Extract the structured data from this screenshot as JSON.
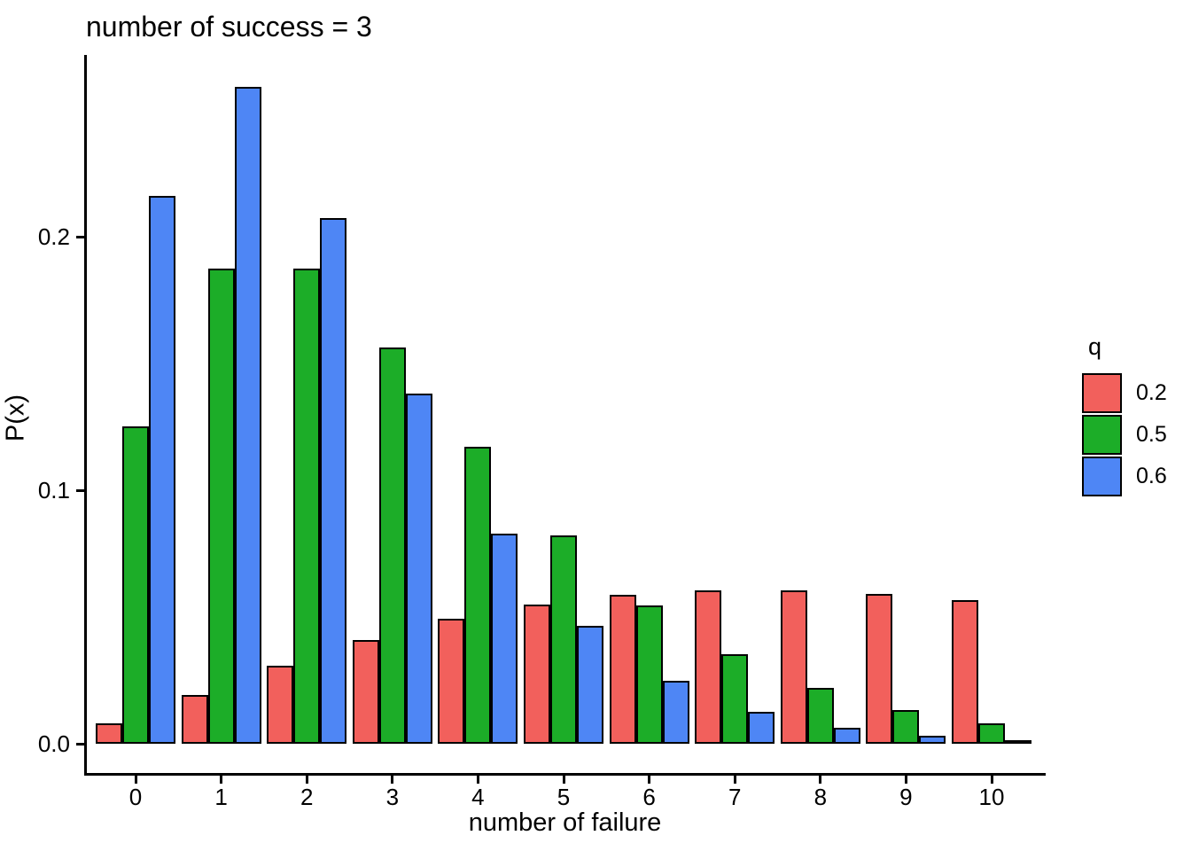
{
  "chart_data": {
    "type": "bar",
    "title": "number of success = 3",
    "xlabel": "number of failure",
    "ylabel": "P(x)",
    "legend_title": "q",
    "legend_position": "right",
    "grid": false,
    "background": "#ffffff",
    "axis_color": "#000000",
    "bar_border_color": "#000000",
    "categories": [
      "0",
      "1",
      "2",
      "3",
      "4",
      "5",
      "6",
      "7",
      "8",
      "9",
      "10"
    ],
    "y_ticks": [
      {
        "label": "0.0",
        "value": 0.0
      },
      {
        "label": "0.1",
        "value": 0.1
      },
      {
        "label": "0.2",
        "value": 0.2
      }
    ],
    "ylim": [
      0,
      0.272
    ],
    "series": [
      {
        "name": "0.2",
        "color": "#F2605C",
        "values": [
          0.008,
          0.0192,
          0.03072,
          0.04096,
          0.049152,
          0.05505,
          0.05872,
          0.060398,
          0.060398,
          0.059056,
          0.056694
        ]
      },
      {
        "name": "0.5",
        "color": "#1CAD28",
        "values": [
          0.125,
          0.1875,
          0.1875,
          0.15625,
          0.117188,
          0.082031,
          0.054688,
          0.035156,
          0.021973,
          0.013428,
          0.008057
        ]
      },
      {
        "name": "0.6",
        "color": "#4E86F5",
        "values": [
          0.216,
          0.2592,
          0.20736,
          0.13824,
          0.082944,
          0.046449,
          0.024773,
          0.01274,
          0.00637,
          0.003114,
          0.001495
        ]
      }
    ]
  }
}
